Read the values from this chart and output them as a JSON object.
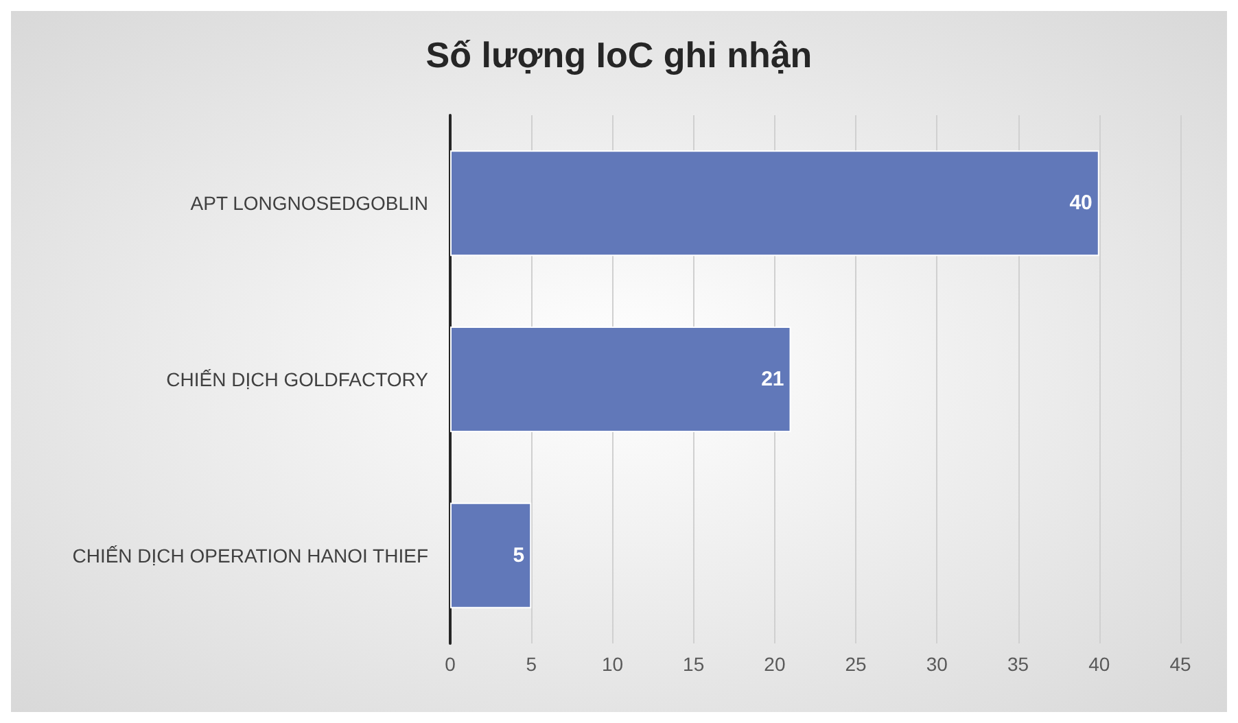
{
  "chart_data": {
    "type": "bar",
    "orientation": "horizontal",
    "title": "Số lượng IoC ghi nhận",
    "categories": [
      "APT LONGNOSEDGOBLIN",
      "CHIẾN DỊCH GOLDFACTORY",
      "CHIẾN DỊCH OPERATION HANOI THIEF"
    ],
    "values": [
      40,
      21,
      5
    ],
    "color": "#6178b9",
    "data_labels": true,
    "grid": "x",
    "xlim": [
      0,
      45
    ],
    "xticks": [
      0,
      5,
      10,
      15,
      20,
      25,
      30,
      35,
      40,
      45
    ]
  }
}
